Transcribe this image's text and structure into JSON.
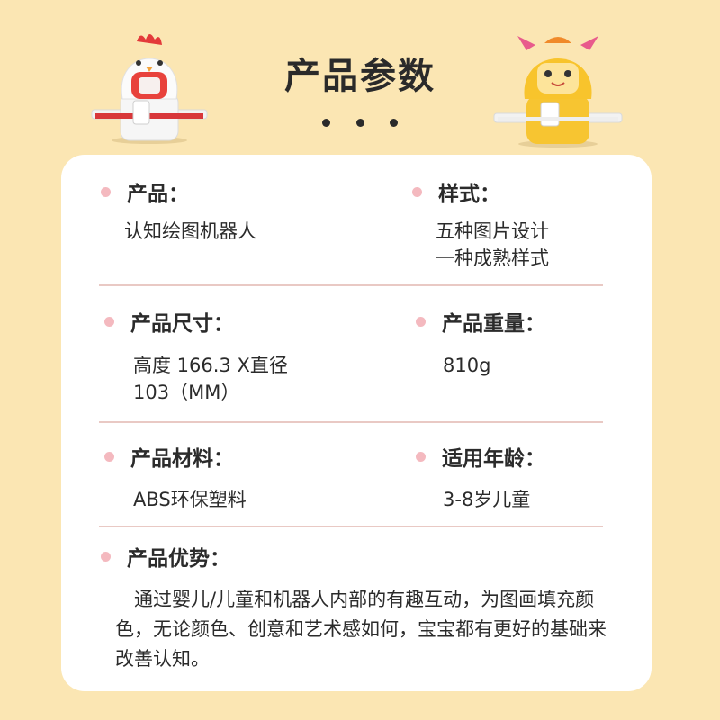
{
  "header": {
    "title": "产品参数"
  },
  "colors": {
    "background": "#fbe6b3",
    "card": "#ffffff",
    "bullet": "#f4b9bf",
    "divider": "#e9c9c4"
  },
  "specs": {
    "product": {
      "label": "产品：",
      "value": "认知绘图机器人"
    },
    "style": {
      "label": "样式：",
      "value": "五种图片设计\n一种成熟样式"
    },
    "size": {
      "label": "产品尺寸：",
      "value": "高度 166.3 X直径\n103（MM）"
    },
    "weight": {
      "label": "产品重量：",
      "value": "810g"
    },
    "material": {
      "label": "产品材料：",
      "value": "ABS环保塑料"
    },
    "age": {
      "label": "适用年龄：",
      "value": "3-8岁儿童"
    },
    "advantage": {
      "label": "产品优势：",
      "value": "　通过婴儿/儿童和机器人内部的有趣互动，为图画填充颜色，无论颜色、创意和艺术感如何，宝宝都有更好的基础来改善认知。"
    }
  }
}
